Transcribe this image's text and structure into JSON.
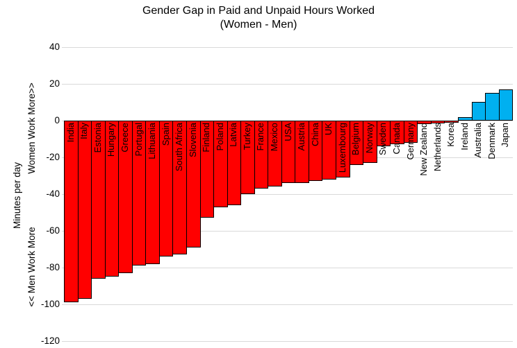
{
  "chart_data": {
    "type": "bar",
    "title": "Gender Gap in Paid and Unpaid Hours Worked",
    "subtitle": "(Women - Men)",
    "ylabel": "Minutes per day",
    "annotation_upper": "Women Work More>>",
    "annotation_lower": "<< Men Work More",
    "ylim": [
      -120,
      40
    ],
    "yticks": [
      40,
      20,
      0,
      -20,
      -40,
      -60,
      -80,
      -100,
      -120
    ],
    "grid": true,
    "legend": "none",
    "categories": [
      "India",
      "Italy",
      "Estonia",
      "Hungary",
      "Greece",
      "Portugal",
      "Lithuania",
      "Spain",
      "South Africa",
      "Slovenia",
      "Finland",
      "Poland",
      "Latvia",
      "Turkey",
      "France",
      "Mexico",
      "USA",
      "Austria",
      "China",
      "UK",
      "Luxembourg",
      "Belgium",
      "Norway",
      "Sweden",
      "Canada",
      "Germany",
      "New Zealand",
      "Netherlands",
      "Korea",
      "Ireland",
      "Australia",
      "Denmark",
      "Japan"
    ],
    "values": [
      -99,
      -97,
      -86,
      -85,
      -83,
      -79,
      -78,
      -74,
      -73,
      -69,
      -53,
      -47,
      -46,
      -40,
      -37,
      -36,
      -34,
      -34,
      -33,
      -32,
      -31,
      -24,
      -23,
      -14,
      -13,
      -12,
      -2,
      -1.5,
      -1,
      2,
      10,
      15,
      17
    ],
    "colors": {
      "negative_bar": "#FF0000",
      "positive_bar": "#00B0F0",
      "bar_border": "#000000",
      "gridline": "#D9D9D9",
      "text": "#000000",
      "background": "#FFFFFF"
    }
  }
}
